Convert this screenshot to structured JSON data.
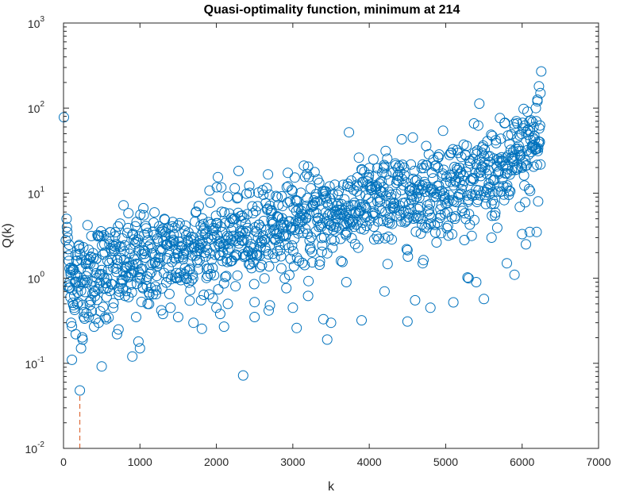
{
  "chart_data": {
    "type": "scatter",
    "title": "Quasi-optimality function, minimum at 214",
    "xlabel": "k",
    "ylabel": "Q(k)",
    "xlim": [
      0,
      7000
    ],
    "ylim": [
      0.01,
      1000
    ],
    "yscale": "log",
    "grid": false,
    "legend": "none",
    "x_ticks": [
      "0",
      "1000",
      "2000",
      "3000",
      "4000",
      "5000",
      "6000",
      "7000"
    ],
    "y_ticks": [
      {
        "base": "10",
        "exp": "-2"
      },
      {
        "base": "10",
        "exp": "-1"
      },
      {
        "base": "10",
        "exp": "0"
      },
      {
        "base": "10",
        "exp": "1"
      },
      {
        "base": "10",
        "exp": "2"
      },
      {
        "base": "10",
        "exp": "3"
      }
    ],
    "minimum": {
      "k": 214,
      "q": 0.048
    },
    "colors": {
      "series": "#0072BD",
      "minimum_line": "#D95319"
    },
    "series": [
      {
        "points": [
          [
            5,
            78
          ],
          [
            30,
            2.8
          ],
          [
            40,
            5.0
          ],
          [
            45,
            4.0
          ],
          [
            50,
            3.5
          ],
          [
            55,
            3.0
          ],
          [
            60,
            2.2
          ],
          [
            70,
            1.6
          ],
          [
            80,
            0.9
          ],
          [
            90,
            0.6
          ],
          [
            100,
            0.3
          ],
          [
            110,
            0.11
          ],
          [
            120,
            1.3
          ],
          [
            140,
            0.45
          ],
          [
            160,
            0.22
          ],
          [
            180,
            0.5
          ],
          [
            200,
            0.8
          ],
          [
            214,
            0.048
          ],
          [
            230,
            0.15
          ],
          [
            250,
            0.19
          ],
          [
            270,
            0.4
          ],
          [
            300,
            1.5
          ],
          [
            330,
            0.35
          ],
          [
            360,
            0.55
          ],
          [
            400,
            0.27
          ],
          [
            430,
            1.7
          ],
          [
            460,
            0.3
          ],
          [
            500,
            0.092
          ],
          [
            530,
            3.2
          ],
          [
            560,
            0.33
          ],
          [
            600,
            2.5
          ],
          [
            650,
            0.45
          ],
          [
            700,
            0.22
          ],
          [
            720,
            0.25
          ],
          [
            780,
            1.2
          ],
          [
            850,
            0.6
          ],
          [
            900,
            0.12
          ],
          [
            950,
            0.35
          ],
          [
            980,
            0.18
          ],
          [
            1000,
            0.15
          ],
          [
            1050,
            5.5
          ],
          [
            1100,
            0.5
          ],
          [
            1200,
            0.8
          ],
          [
            1300,
            0.38
          ],
          [
            1400,
            0.45
          ],
          [
            1500,
            0.35
          ],
          [
            1600,
            1.0
          ],
          [
            1700,
            0.3
          ],
          [
            1800,
            0.55
          ],
          [
            1900,
            1.3
          ],
          [
            2000,
            0.45
          ],
          [
            2050,
            0.38
          ],
          [
            2100,
            0.27
          ],
          [
            2150,
            0.5
          ],
          [
            2200,
            1.6
          ],
          [
            2350,
            0.072
          ],
          [
            2500,
            0.35
          ],
          [
            2700,
            0.48
          ],
          [
            2800,
            9.0
          ],
          [
            3000,
            0.45
          ],
          [
            3050,
            0.26
          ],
          [
            3200,
            0.62
          ],
          [
            3400,
            0.33
          ],
          [
            3450,
            0.19
          ],
          [
            3500,
            0.3
          ],
          [
            3700,
            0.9
          ],
          [
            3900,
            0.32
          ],
          [
            4100,
            12.0
          ],
          [
            4200,
            0.7
          ],
          [
            4500,
            0.31
          ],
          [
            4600,
            0.55
          ],
          [
            4700,
            1.5
          ],
          [
            4800,
            0.45
          ],
          [
            4900,
            20.0
          ],
          [
            5100,
            0.52
          ],
          [
            5300,
            1.0
          ],
          [
            5400,
            0.9
          ],
          [
            5500,
            0.57
          ],
          [
            5600,
            3.0
          ],
          [
            5700,
            12.0
          ],
          [
            5800,
            1.5
          ],
          [
            5900,
            1.1
          ],
          [
            6000,
            3.3
          ],
          [
            6050,
            2.5
          ],
          [
            6100,
            3.5
          ],
          [
            6150,
            60.0
          ],
          [
            6180,
            100.0
          ],
          [
            6200,
            120.0
          ],
          [
            6220,
            180.0
          ],
          [
            6240,
            150.0
          ],
          [
            6250,
            270.0
          ],
          [
            6230,
            40.0
          ],
          [
            6210,
            8.0
          ],
          [
            6190,
            3.5
          ]
        ],
        "cloud": {
          "k_min": 60,
          "k_max": 6240,
          "k_step": 5,
          "q_at_start": 1.0,
          "q_at_end": 22.0,
          "q_end_rise": 2.0,
          "spread": 0.28
        }
      }
    ]
  }
}
